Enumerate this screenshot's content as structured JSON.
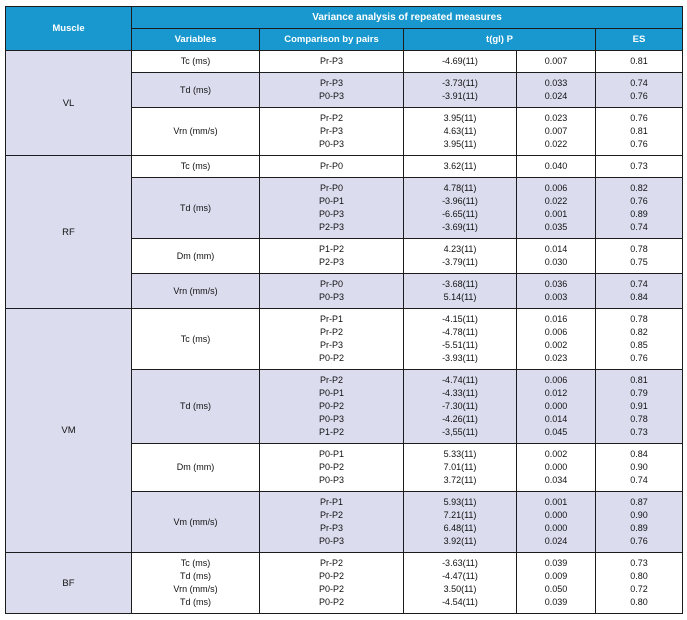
{
  "colors": {
    "header_bg": "#1898ce",
    "header_text": "#ffffff",
    "shaded_row": "#dbdcee",
    "border": "#1c1c1c"
  },
  "header": {
    "muscle": "Muscle",
    "title": "Variance analysis of repeated measures",
    "variables": "Variables",
    "pairs": "Comparison by pairs",
    "tgl_p": "t(gl) P",
    "es": "ES"
  },
  "muscles": [
    {
      "name": "VL",
      "groups": [
        {
          "variables": [
            "Tc (ms)"
          ],
          "shaded": false,
          "rows": [
            {
              "pair": "Pr-P3",
              "t": "-4.69(11)",
              "p": "0.007",
              "es": "0.81"
            }
          ]
        },
        {
          "variables": [
            "Td (ms)"
          ],
          "shaded": true,
          "rows": [
            {
              "pair": "Pr-P3",
              "t": "-3.73(11)",
              "p": "0.033",
              "es": "0.74"
            },
            {
              "pair": "P0-P3",
              "t": "-3.91(11)",
              "p": "0.024",
              "es": "0.76"
            }
          ]
        },
        {
          "variables": [
            "Vrn (mm/s)"
          ],
          "shaded": false,
          "rows": [
            {
              "pair": "Pr-P2",
              "t": "3.95(11)",
              "p": "0.023",
              "es": "0.76"
            },
            {
              "pair": "Pr-P3",
              "t": "4.63(11)",
              "p": "0.007",
              "es": "0.81"
            },
            {
              "pair": "P0-P3",
              "t": "3.95(11)",
              "p": "0.022",
              "es": "0.76"
            }
          ]
        }
      ]
    },
    {
      "name": "RF",
      "groups": [
        {
          "variables": [
            "Tc (ms)"
          ],
          "shaded": false,
          "rows": [
            {
              "pair": "Pr-P0",
              "t": "3.62(11)",
              "p": "0.040",
              "es": "0.73"
            }
          ]
        },
        {
          "variables": [
            "Td (ms)"
          ],
          "shaded": true,
          "rows": [
            {
              "pair": "Pr-P0",
              "t": "4.78(11)",
              "p": "0.006",
              "es": "0.82"
            },
            {
              "pair": "P0-P1",
              "t": "-3.96(11)",
              "p": "0.022",
              "es": "0.76"
            },
            {
              "pair": "P0-P3",
              "t": "-6.65(11)",
              "p": "0.001",
              "es": "0.89"
            },
            {
              "pair": "P2-P3",
              "t": "-3.69(11)",
              "p": "0.035",
              "es": "0.74"
            }
          ]
        },
        {
          "variables": [
            "Dm (mm)"
          ],
          "shaded": false,
          "rows": [
            {
              "pair": "P1-P2",
              "t": "4.23(11)",
              "p": "0.014",
              "es": "0.78"
            },
            {
              "pair": "P2-P3",
              "t": "-3.79(11)",
              "p": "0.030",
              "es": "0.75"
            }
          ]
        },
        {
          "variables": [
            "Vrn (mm/s)"
          ],
          "shaded": true,
          "rows": [
            {
              "pair": "Pr-P0",
              "t": "-3.68(11)",
              "p": "0.036",
              "es": "0.74"
            },
            {
              "pair": "P0-P3",
              "t": "5.14(11)",
              "p": "0.003",
              "es": "0.84"
            }
          ]
        }
      ]
    },
    {
      "name": "VM",
      "groups": [
        {
          "variables": [
            "Tc (ms)"
          ],
          "shaded": false,
          "rows": [
            {
              "pair": "Pr-P1",
              "t": "-4.15(11)",
              "p": "0.016",
              "es": "0.78"
            },
            {
              "pair": "Pr-P2",
              "t": "-4.78(11)",
              "p": "0.006",
              "es": "0.82"
            },
            {
              "pair": "Pr-P3",
              "t": "-5.51(11)",
              "p": "0.002",
              "es": "0.85"
            },
            {
              "pair": "P0-P2",
              "t": "-3.93(11)",
              "p": "0.023",
              "es": "0.76"
            }
          ]
        },
        {
          "variables": [
            "Td (ms)"
          ],
          "shaded": true,
          "rows": [
            {
              "pair": "Pr-P2",
              "t": "-4.74(11)",
              "p": "0.006",
              "es": "0.81"
            },
            {
              "pair": "P0-P1",
              "t": "-4.33(11)",
              "p": "0.012",
              "es": "0.79"
            },
            {
              "pair": "P0-P2",
              "t": "-7.30(11)",
              "p": "0.000",
              "es": "0.91"
            },
            {
              "pair": "P0-P3",
              "t": "-4.26(11)",
              "p": "0.014",
              "es": "0.78"
            },
            {
              "pair": "P1-P2",
              "t": "-3,55(11)",
              "p": "0.045",
              "es": "0.73"
            }
          ]
        },
        {
          "variables": [
            "Dm (mm)"
          ],
          "shaded": false,
          "rows": [
            {
              "pair": "P0-P1",
              "t": "5.33(11)",
              "p": "0.002",
              "es": "0.84"
            },
            {
              "pair": "P0-P2",
              "t": "7.01(11)",
              "p": "0.000",
              "es": "0.90"
            },
            {
              "pair": "P0-P3",
              "t": "3.72(11)",
              "p": "0.034",
              "es": "0.74"
            }
          ]
        },
        {
          "variables": [
            "Vm (mm/s)"
          ],
          "shaded": true,
          "rows": [
            {
              "pair": "Pr-P1",
              "t": "5.93(11)",
              "p": "0.001",
              "es": "0.87"
            },
            {
              "pair": "Pr-P2",
              "t": "7.21(11)",
              "p": "0.000",
              "es": "0.90"
            },
            {
              "pair": "Pr-P3",
              "t": "6.48(11)",
              "p": "0.000",
              "es": "0.89"
            },
            {
              "pair": "P0-P3",
              "t": "3.92(11)",
              "p": "0.024",
              "es": "0.76"
            }
          ]
        }
      ]
    },
    {
      "name": "BF",
      "groups": [
        {
          "variables": [
            "Tc (ms)",
            "Td (ms)",
            "Vrn (mm/s)",
            "Td (ms)"
          ],
          "shaded": false,
          "rows": [
            {
              "pair": "Pr-P2",
              "t": "-3.63(11)",
              "p": "0.039",
              "es": "0.73"
            },
            {
              "pair": "P0-P2",
              "t": "-4.47(11)",
              "p": "0.009",
              "es": "0.80"
            },
            {
              "pair": "P0-P2",
              "t": "3.50(11)",
              "p": "0.050",
              "es": "0.72"
            },
            {
              "pair": "P0-P2",
              "t": "-4.54(11)",
              "p": "0.039",
              "es": "0.80"
            }
          ]
        }
      ]
    }
  ]
}
